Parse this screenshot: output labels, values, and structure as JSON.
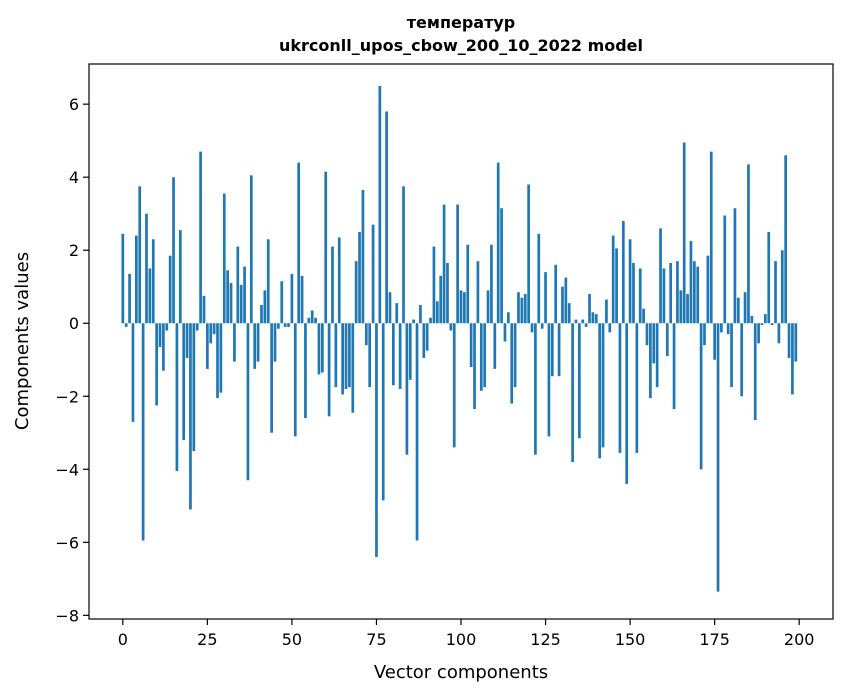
{
  "chart_data": {
    "type": "bar",
    "title": "температур",
    "subtitle": "ukrconll_upos_cbow_200_10_2022 model",
    "xlabel": "Vector components",
    "ylabel": "Components values",
    "xlim": [
      -10,
      210
    ],
    "ylim": [
      -8.1,
      7.1
    ],
    "xticks": [
      0,
      25,
      50,
      75,
      100,
      125,
      150,
      175,
      200
    ],
    "yticks": [
      -8,
      -6,
      -4,
      -2,
      0,
      2,
      4,
      6
    ],
    "ytick_labels": [
      "−8",
      "−6",
      "−4",
      "−2",
      "0",
      "2",
      "4",
      "6"
    ],
    "grid": false,
    "bar_color": "#1f77b4",
    "values": [
      2.45,
      -0.1,
      1.35,
      -2.7,
      2.4,
      3.75,
      -5.95,
      3.0,
      1.5,
      2.3,
      -2.25,
      -0.65,
      -1.3,
      -0.2,
      1.85,
      4.0,
      -4.05,
      2.55,
      -3.2,
      -0.95,
      -5.1,
      -3.5,
      -0.2,
      4.7,
      0.75,
      -1.25,
      -0.55,
      -0.3,
      -2.05,
      -1.9,
      3.55,
      1.45,
      1.1,
      -1.05,
      2.1,
      1.05,
      1.55,
      -4.3,
      4.05,
      -1.25,
      -1.05,
      0.5,
      0.9,
      2.3,
      -3.0,
      -1.05,
      -0.15,
      1.15,
      -0.1,
      -0.1,
      1.35,
      -3.1,
      4.4,
      1.3,
      -2.6,
      0.15,
      0.35,
      0.15,
      -1.4,
      -1.35,
      4.15,
      -2.55,
      2.1,
      -1.75,
      2.35,
      -1.95,
      -1.8,
      -1.75,
      -2.45,
      1.7,
      2.5,
      3.65,
      -0.6,
      -1.75,
      2.7,
      -6.4,
      6.5,
      -4.85,
      5.8,
      0.85,
      -1.7,
      0.55,
      -1.8,
      3.75,
      -3.6,
      -1.55,
      0.1,
      -5.95,
      0.5,
      -0.95,
      -0.75,
      0.15,
      2.1,
      0.6,
      1.3,
      3.25,
      1.65,
      -0.2,
      -3.4,
      3.25,
      0.9,
      0.85,
      2.15,
      -1.2,
      -2.35,
      1.7,
      -1.85,
      -1.75,
      0.9,
      2.15,
      -1.25,
      4.4,
      3.15,
      -0.5,
      0.3,
      -2.2,
      -1.75,
      0.85,
      0.7,
      0.8,
      3.8,
      -0.25,
      -3.6,
      2.45,
      -0.15,
      1.4,
      -3.1,
      -1.45,
      1.6,
      -1.45,
      1.0,
      1.25,
      0.55,
      -3.8,
      0.1,
      -3.15,
      0.1,
      -0.1,
      0.8,
      0.3,
      0.25,
      -3.7,
      -3.4,
      0.65,
      -0.25,
      2.4,
      2.05,
      -3.55,
      2.8,
      -4.4,
      2.3,
      1.65,
      -3.55,
      1.5,
      0.4,
      -0.6,
      -2.05,
      -1.1,
      -1.75,
      2.6,
      1.5,
      -0.9,
      1.65,
      -2.35,
      1.7,
      0.9,
      4.95,
      0.8,
      2.25,
      1.7,
      1.55,
      -4.0,
      -0.6,
      1.85,
      4.7,
      -1.0,
      -7.35,
      -0.25,
      2.95,
      -0.3,
      -1.75,
      3.15,
      0.7,
      -2.0,
      0.85,
      4.35,
      0.2,
      -2.65,
      -0.55,
      -0.05,
      0.25,
      2.5,
      -0.05,
      1.7,
      -0.55,
      2.0,
      4.6,
      -0.95,
      -1.95,
      -1.05
    ]
  }
}
